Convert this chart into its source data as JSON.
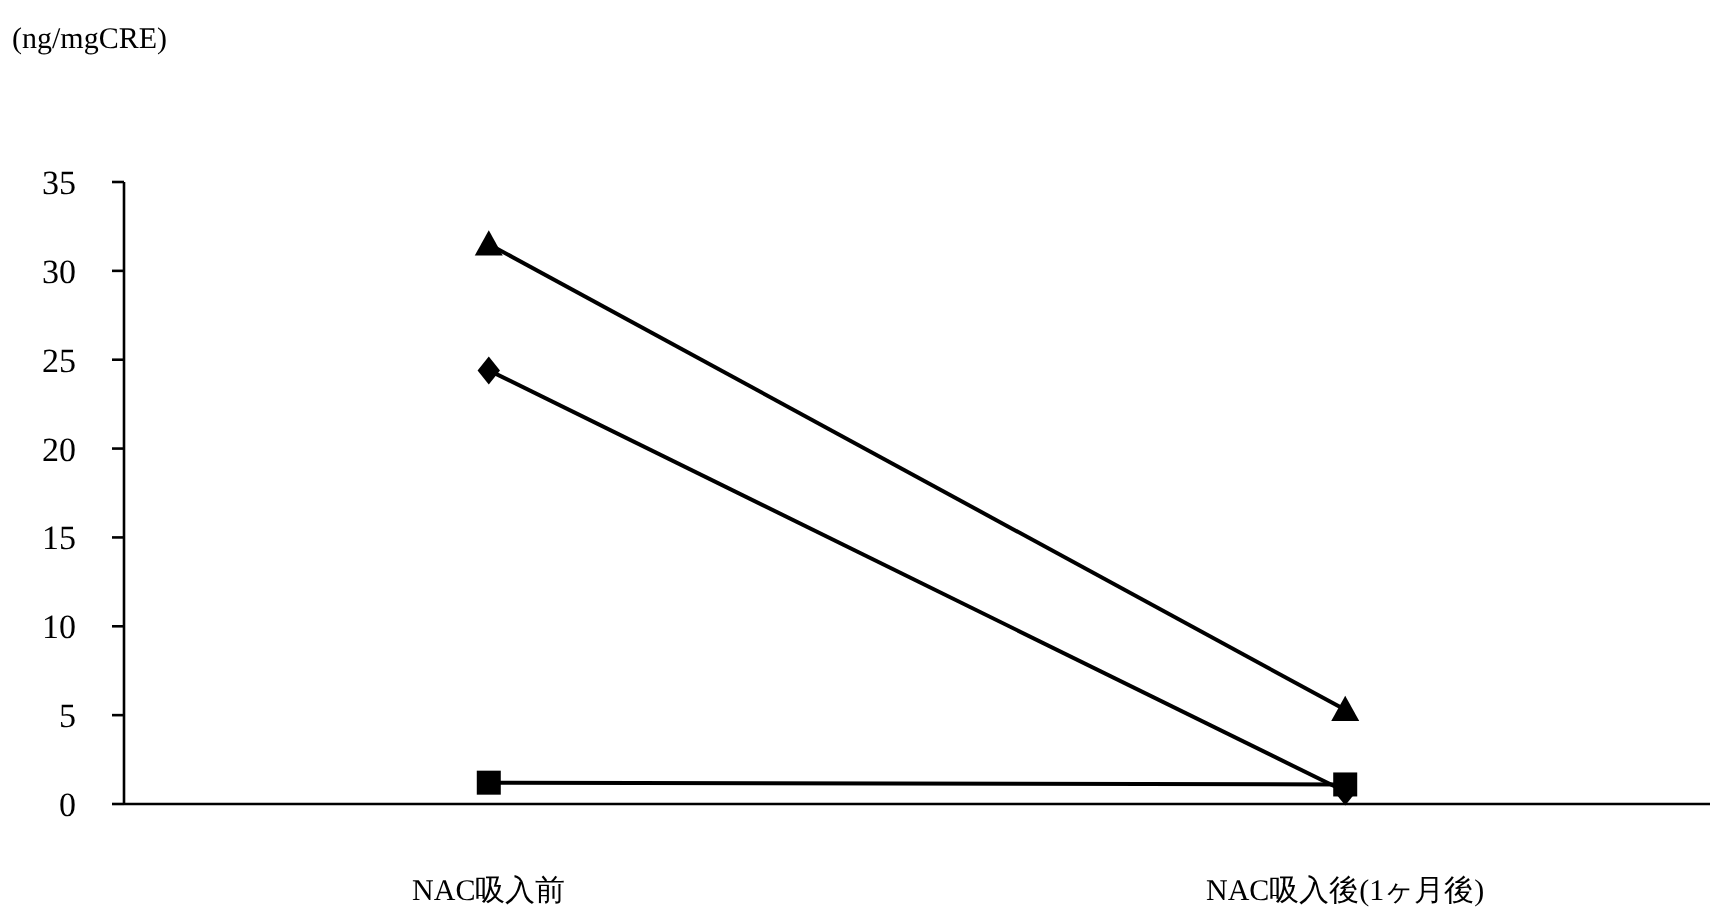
{
  "chart_data": {
    "type": "line",
    "ylabel": "(ng/mgCRE)",
    "categories": [
      "NAC吸入前",
      "NAC吸入後(1ヶ月後)"
    ],
    "series": [
      {
        "color": "#000000",
        "marker": "triangle",
        "values": [
          31.5,
          5.3
        ]
      },
      {
        "color": "#000000",
        "marker": "diamond",
        "values": [
          24.4,
          0.7
        ]
      },
      {
        "color": "#000000",
        "marker": "square",
        "values": [
          1.2,
          1.1
        ]
      }
    ],
    "ylim": [
      0,
      35
    ],
    "yticks": [
      0,
      5,
      10,
      15,
      20,
      25,
      30,
      35
    ],
    "grid": false,
    "line_style": "solid"
  }
}
